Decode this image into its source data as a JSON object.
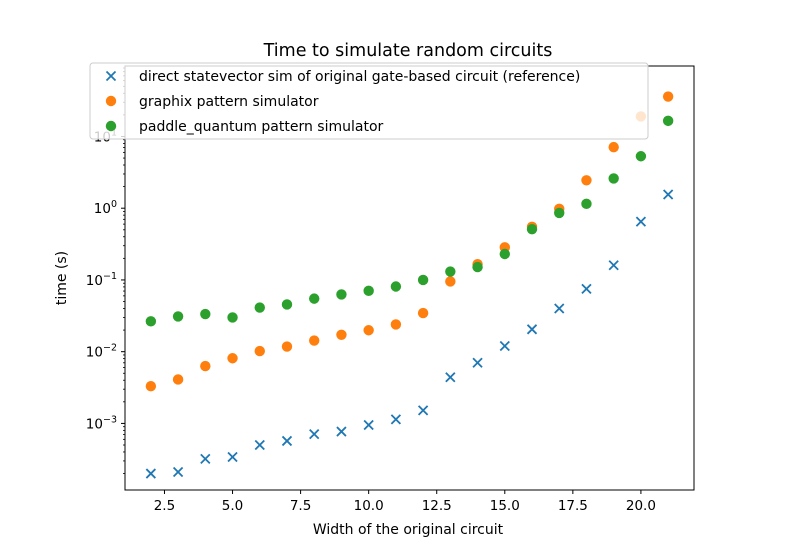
{
  "chart_data": {
    "type": "scatter",
    "title": "Time to simulate random circuits",
    "xlabel": "Width of the original circuit",
    "ylabel": "time (s)",
    "yscale": "log",
    "xlim": [
      1.05,
      21.95
    ],
    "ylim": [
      0.000118,
      96
    ],
    "legend_position": "upper-left",
    "grid": false,
    "x_ticks": [
      {
        "value": 2.5,
        "label": "2.5"
      },
      {
        "value": 5.0,
        "label": "5.0"
      },
      {
        "value": 7.5,
        "label": "7.5"
      },
      {
        "value": 10.0,
        "label": "10.0"
      },
      {
        "value": 12.5,
        "label": "12.5"
      },
      {
        "value": 15.0,
        "label": "15.0"
      },
      {
        "value": 17.5,
        "label": "17.5"
      },
      {
        "value": 20.0,
        "label": "20.0"
      }
    ],
    "y_ticks": [
      {
        "value": 0.001,
        "base": "10",
        "exp": "−3"
      },
      {
        "value": 0.01,
        "base": "10",
        "exp": "−2"
      },
      {
        "value": 0.1,
        "base": "10",
        "exp": "−1"
      },
      {
        "value": 1,
        "base": "10",
        "exp": "0"
      },
      {
        "value": 10,
        "base": "10",
        "exp": "1"
      }
    ],
    "series": [
      {
        "name": "direct statevector sim of original gate-based circuit (reference)",
        "marker": "x",
        "color": "#1f77b4",
        "x": [
          2,
          3,
          4,
          5,
          6,
          7,
          8,
          9,
          10,
          11,
          12,
          13,
          14,
          15,
          16,
          17,
          18,
          19,
          20,
          21
        ],
        "y": [
          0.0002,
          0.00021,
          0.00032,
          0.00034,
          0.0005,
          0.00057,
          0.00071,
          0.00077,
          0.00095,
          0.00114,
          0.00152,
          0.0044,
          0.007,
          0.012,
          0.0205,
          0.04,
          0.075,
          0.16,
          0.65,
          1.55
        ]
      },
      {
        "name": "graphix pattern simulator",
        "marker": "o",
        "color": "#ff7f0e",
        "x": [
          2,
          3,
          4,
          5,
          6,
          7,
          8,
          9,
          10,
          11,
          12,
          13,
          14,
          15,
          16,
          17,
          18,
          19,
          20,
          21
        ],
        "y": [
          0.0033,
          0.0041,
          0.0063,
          0.0081,
          0.0102,
          0.0118,
          0.0143,
          0.0172,
          0.0199,
          0.024,
          0.0345,
          0.0952,
          0.166,
          0.285,
          0.55,
          0.98,
          2.45,
          7.1,
          19,
          36
        ]
      },
      {
        "name": "paddle_quantum pattern simulator",
        "marker": "o",
        "color": "#2ca02c",
        "x": [
          2,
          3,
          4,
          5,
          6,
          7,
          8,
          9,
          10,
          11,
          12,
          13,
          14,
          15,
          16,
          17,
          18,
          19,
          20,
          21
        ],
        "y": [
          0.0265,
          0.031,
          0.0335,
          0.03,
          0.0412,
          0.0455,
          0.0549,
          0.0628,
          0.0705,
          0.081,
          0.1,
          0.131,
          0.151,
          0.23,
          0.51,
          0.86,
          1.15,
          2.6,
          5.3,
          16.5
        ]
      }
    ]
  }
}
